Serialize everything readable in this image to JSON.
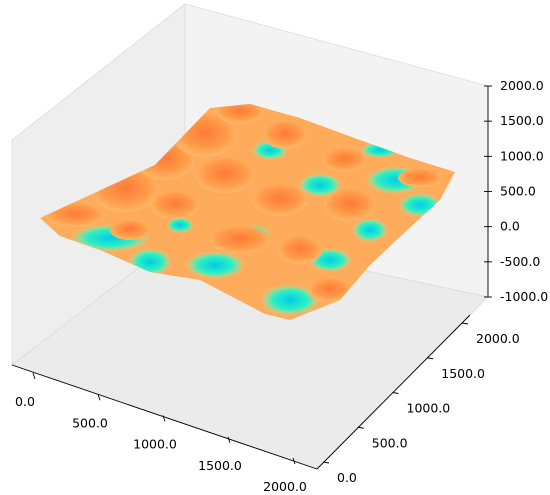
{
  "chart_data": {
    "type": "surface3d",
    "title": "",
    "xlabel": "",
    "ylabel": "",
    "zlabel": "",
    "x_ticks": [
      "0.0",
      "500.0",
      "1000.0",
      "1500.0",
      "2000.0"
    ],
    "y_ticks": [
      "0.0",
      "500.0",
      "1000.0",
      "1500.0",
      "2000.0"
    ],
    "z_ticks": [
      "-1000.0",
      "-500.0",
      "0.0",
      "500.0",
      "1000.0",
      "1500.0",
      "2000.0"
    ],
    "xlim": [
      0,
      2000
    ],
    "ylim": [
      0,
      2000
    ],
    "zlim": [
      -1000,
      2000
    ],
    "surface_height_range": [
      -700,
      650
    ],
    "colormap": [
      "#00c8e0",
      "#20f0c0",
      "#90f6a8",
      "#e8f0a8",
      "#ffd080",
      "#ffa050",
      "#ff7a38"
    ],
    "grid": false,
    "legend": "none"
  }
}
